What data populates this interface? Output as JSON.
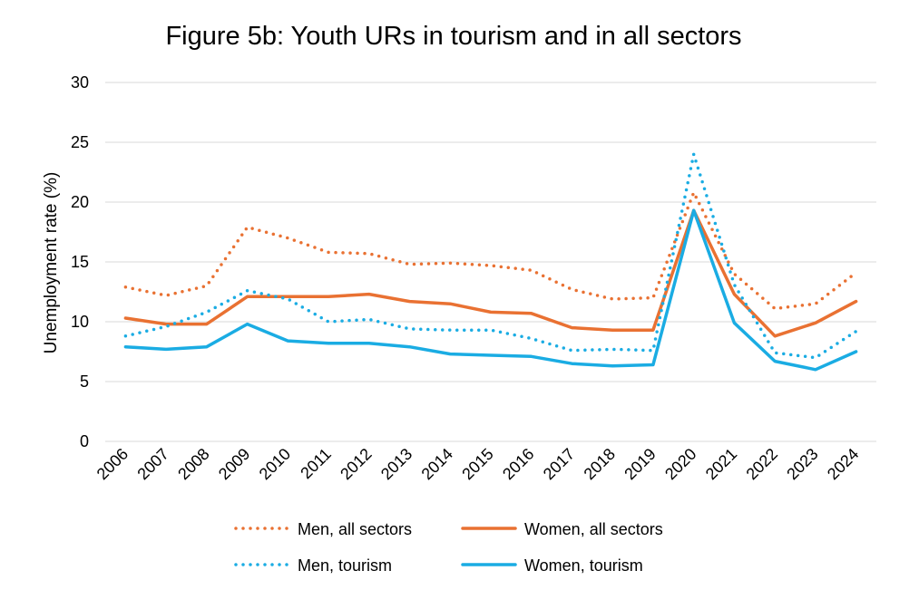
{
  "chart_data": {
    "type": "line",
    "title": "Figure 5b: Youth URs in tourism and in all sectors",
    "xlabel": "",
    "ylabel": "Unemployment rate (%)",
    "ylim": [
      0,
      30
    ],
    "yticks": [
      0,
      5,
      10,
      15,
      20,
      25,
      30
    ],
    "grid": true,
    "legend_position": "bottom",
    "categories": [
      "2006",
      "2007",
      "2008",
      "2009",
      "2010",
      "2011",
      "2012",
      "2013",
      "2014",
      "2015",
      "2016",
      "2017",
      "2018",
      "2019",
      "2020",
      "2021",
      "2022",
      "2023",
      "2024"
    ],
    "series": [
      {
        "name": "Men, all sectors",
        "color": "#E97132",
        "style": "dotted",
        "values": [
          12.9,
          12.2,
          13.0,
          17.9,
          17.0,
          15.8,
          15.7,
          14.8,
          14.9,
          14.7,
          14.3,
          12.7,
          11.9,
          12.0,
          20.8,
          14.0,
          11.1,
          11.5,
          14.1
        ]
      },
      {
        "name": "Women, all sectors",
        "color": "#E97132",
        "style": "solid",
        "values": [
          10.3,
          9.8,
          9.8,
          12.1,
          12.1,
          12.1,
          12.3,
          11.7,
          11.5,
          10.8,
          10.7,
          9.5,
          9.3,
          9.3,
          19.3,
          12.3,
          8.8,
          9.9,
          11.7
        ]
      },
      {
        "name": "Men, tourism",
        "color": "#1AACE3",
        "style": "dotted",
        "values": [
          8.8,
          9.6,
          10.8,
          12.6,
          11.9,
          10.0,
          10.2,
          9.4,
          9.3,
          9.3,
          8.6,
          7.6,
          7.7,
          7.6,
          24.0,
          13.1,
          7.4,
          7.0,
          9.2
        ]
      },
      {
        "name": "Women, tourism",
        "color": "#1AACE3",
        "style": "solid",
        "values": [
          7.9,
          7.7,
          7.9,
          9.8,
          8.4,
          8.2,
          8.2,
          7.9,
          7.3,
          7.2,
          7.1,
          6.5,
          6.3,
          6.4,
          19.3,
          9.9,
          6.7,
          6.0,
          7.5
        ]
      }
    ]
  }
}
